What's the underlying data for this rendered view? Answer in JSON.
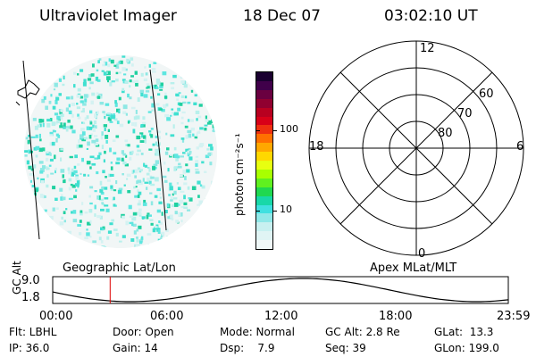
{
  "header": {
    "instrument": "Ultraviolet Imager",
    "date": "18 Dec 07",
    "time": "03:02:10 UT"
  },
  "colorbar": {
    "label": "photon cm⁻²s⁻¹",
    "tick_labels": [
      "100",
      "10"
    ],
    "colors": [
      "#1a0030",
      "#40004a",
      "#6a0040",
      "#900030",
      "#b80020",
      "#d80018",
      "#ee3010",
      "#ff7000",
      "#ffa800",
      "#ffd800",
      "#e8ff10",
      "#a8ff00",
      "#60f020",
      "#20d850",
      "#18d8a8",
      "#40e0e0",
      "#90e8e8",
      "#c8f0f0",
      "#e0f4f4",
      "#f0f8f8"
    ]
  },
  "polar_plot": {
    "mlt_labels": {
      "top": "12",
      "left": "18",
      "right": "6",
      "bottom": "0"
    },
    "lat_labels": [
      "60",
      "70",
      "80"
    ]
  },
  "timeline": {
    "left_title": "Geographic Lat/Lon",
    "right_title": "Apex MLat/MLT",
    "axis_label": "GC Alt",
    "y_labels": [
      "9.0",
      "1.8"
    ],
    "x_labels": [
      "00:00",
      "06:00",
      "12:00",
      "18:00",
      "23:59"
    ],
    "current_time_fraction": 0.126
  },
  "info": {
    "filter": "Flt: LBHL",
    "door": "Door: Open",
    "mode": "Mode: Normal",
    "gc_alt": "GC Alt: 2.8 Re",
    "glat": "GLat:  13.3",
    "ip": "IP: 36.0",
    "gain": "Gain: 14",
    "dsp": "Dsp:    7.9",
    "seq": "Seq: 39",
    "glon": "GLon: 199.0"
  },
  "accent_colors": {
    "orbit_marker": "#dd0000",
    "aurora_cyan": "#40e0d0"
  }
}
